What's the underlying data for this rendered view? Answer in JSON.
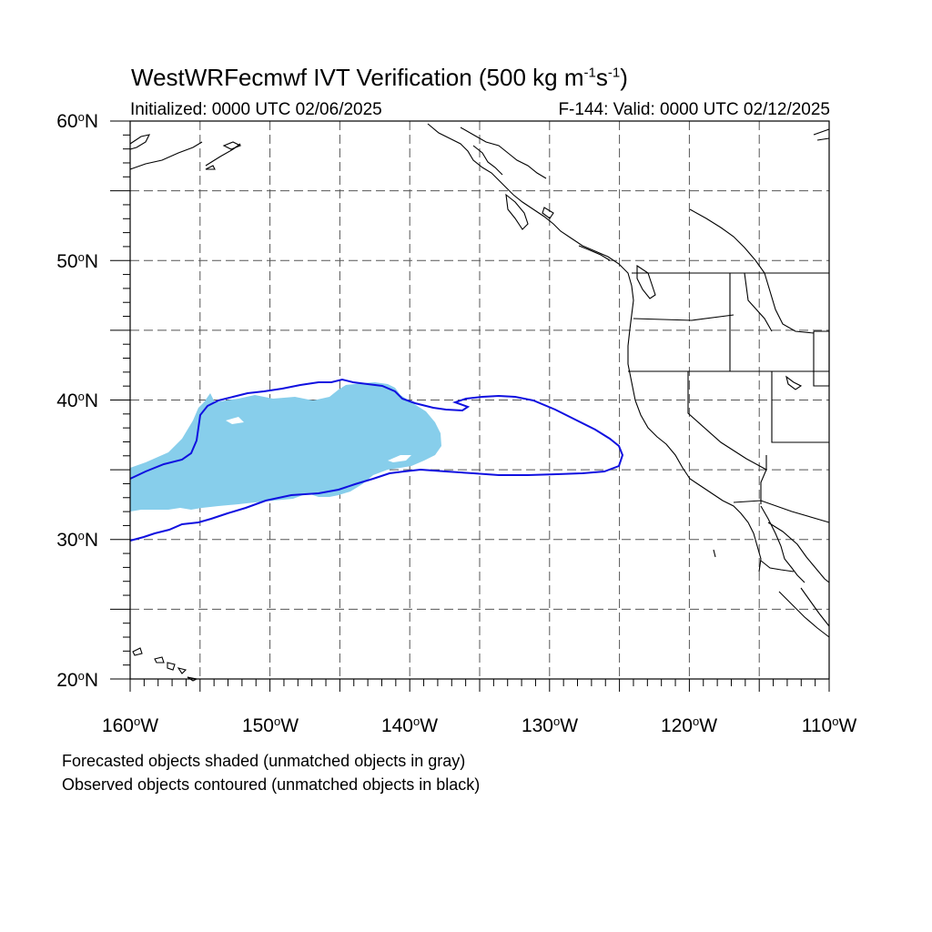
{
  "title": {
    "main": "WestWRFecmwf IVT Verification (500 kg m",
    "exp1": "-1",
    "mid": "s",
    "exp2": "-1",
    "end": ")"
  },
  "initialized": "Initialized: 0000 UTC 02/06/2025",
  "valid": "F-144: Valid: 0000 UTC 02/12/2025",
  "lat_labels": [
    {
      "value": 60,
      "text": "60",
      "hem": "N"
    },
    {
      "value": 50,
      "text": "50",
      "hem": "N"
    },
    {
      "value": 40,
      "text": "40",
      "hem": "N"
    },
    {
      "value": 30,
      "text": "30",
      "hem": "N"
    },
    {
      "value": 20,
      "text": "20",
      "hem": "N"
    }
  ],
  "lon_labels": [
    {
      "value": -160,
      "text": "160",
      "hem": "W"
    },
    {
      "value": -150,
      "text": "150",
      "hem": "W"
    },
    {
      "value": -140,
      "text": "140",
      "hem": "W"
    },
    {
      "value": -130,
      "text": "130",
      "hem": "W"
    },
    {
      "value": -120,
      "text": "120",
      "hem": "W"
    },
    {
      "value": -110,
      "text": "110",
      "hem": "W"
    }
  ],
  "footnotes": [
    "Forecasted objects shaded (unmatched objects in gray)",
    "Observed objects contoured (unmatched objects in black)"
  ],
  "map": {
    "extent": {
      "lon_min": -160,
      "lon_max": -110,
      "lat_min": 20,
      "lat_max": 60
    },
    "grid_interval_deg": 5,
    "minor_tick_deg": 1,
    "forecast_fill_color": "#87ceeb",
    "observed_contour_color": "#1010e0",
    "coastline_color": "#000000",
    "grid_color": "#555555"
  }
}
